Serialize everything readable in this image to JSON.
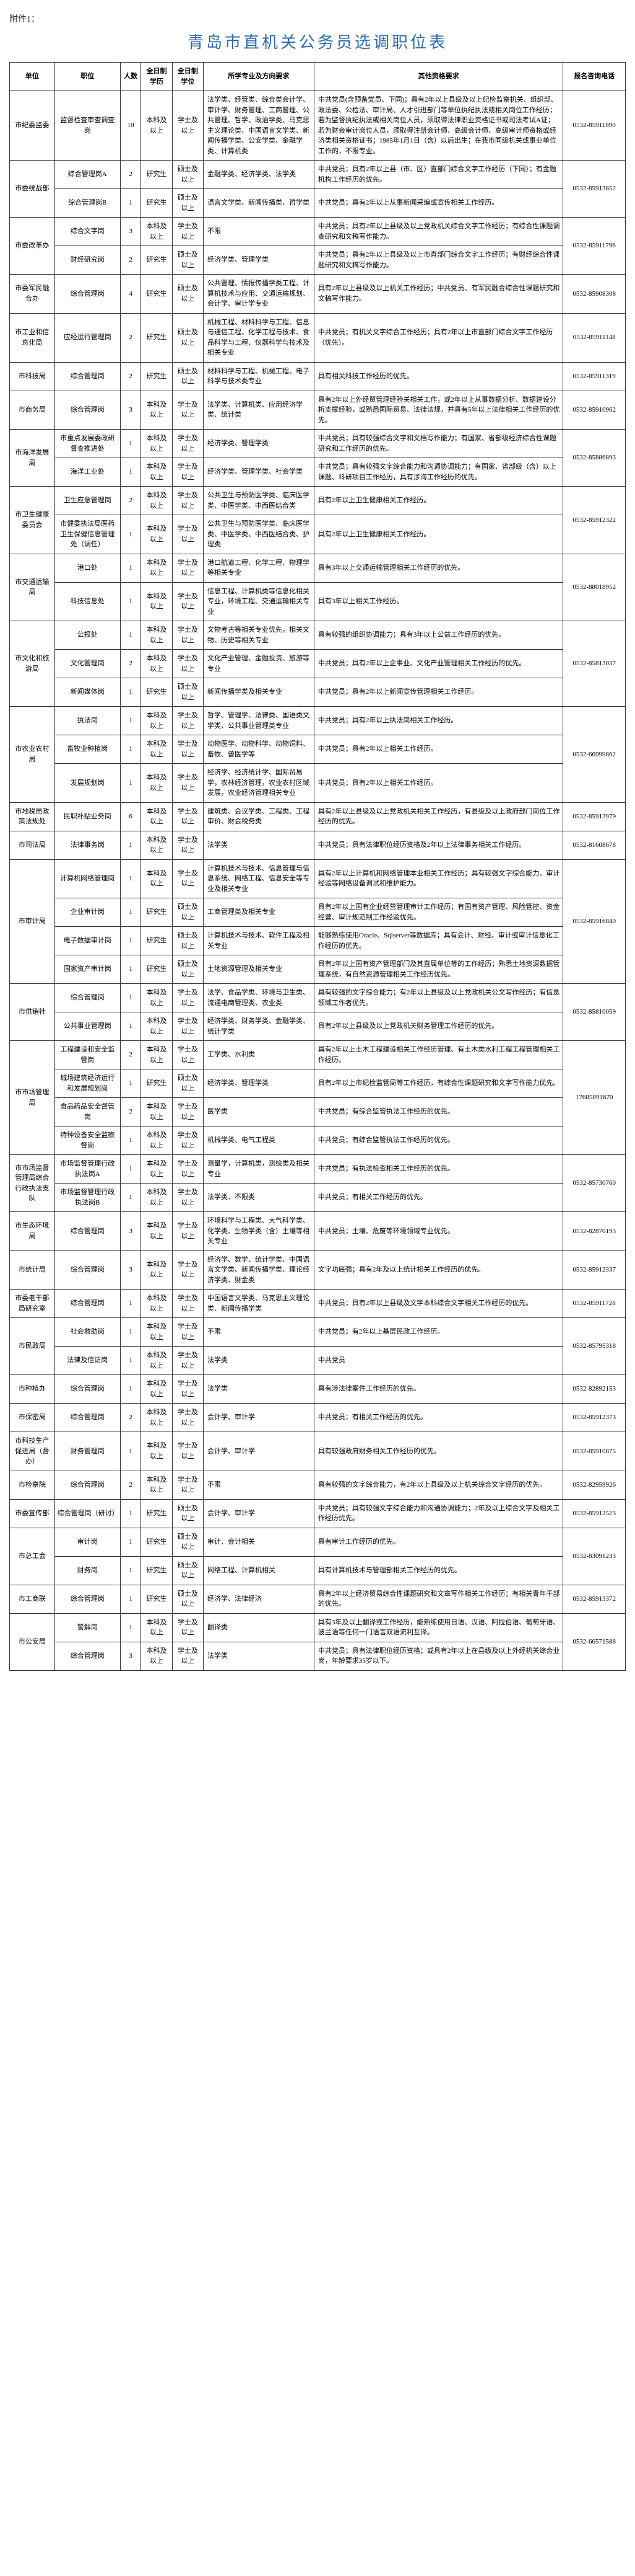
{
  "attachment_label": "附件1：",
  "title": "青岛市直机关公务员选调职位表",
  "headers": {
    "unit": "单位",
    "position": "职位",
    "count": "人数",
    "edu": "全日制学历",
    "degree": "全日制学位",
    "major": "所学专业及方向要求",
    "other": "其他资格要求",
    "phone": "报名咨询电话"
  },
  "rows": [
    {
      "unit": "市纪委监委",
      "unit_rowspan": 1,
      "position": "监督检查审查调查岗",
      "count": "10",
      "edu": "本科及以上",
      "degree": "学士及以上",
      "major": "法学类、经管类、综合类会计学、审计学、财务管理、工商管理、公共管理、哲学、政治学类、马克思主义理论类、中国语言文学类、新闻传播学类、公安学类、金融学类、计算机类",
      "other": "中共党员(含预备党员、下同)；具有2年以上县级及以上纪检监察机关、组织部、政法委、公检法、审计局、人才引进部门等单位执纪执法或相关岗位工作经历；若为监督执纪执法或相关岗位人员，须取得法律职业资格证书或司法考试A证；若为财会审计岗位人员，须取得注册会计师、高级会计师、高级审计师资格或经济类相关资格证书；1985年1月1日（含）以后出生；在我市同级机关或事业单位工作的，不限专业。",
      "phone": "0532-85911890"
    },
    {
      "unit": "市委统战部",
      "unit_rowspan": 2,
      "position": "综合管理岗A",
      "count": "2",
      "edu": "研究生",
      "degree": "硕士及以上",
      "major": "金融学类、经济学类、法学类",
      "other": "中共党员；具有2年以上县（市、区）直部门综合文字工作经历（下同）；有金融机构工作经历的优先。",
      "phone": "0532-85913852",
      "phone_rowspan": 2
    },
    {
      "position": "综合管理岗B",
      "count": "1",
      "edu": "研究生",
      "degree": "硕士及以上",
      "major": "语言文学类、新闻传播类、哲学类",
      "other": "中共党员；具有2年以上从事新闻采编或宣传相关工作经历。"
    },
    {
      "unit": "市委改革办",
      "unit_rowspan": 2,
      "position": "综合文字岗",
      "count": "3",
      "edu": "本科及以上",
      "degree": "学士及以上",
      "major": "不限",
      "other": "中共党员；具有2年以上县级及以上党政机关综合文字工作经历；有综合性课题调查研究和文稿写作能力。",
      "phone": "0532-85911796",
      "phone_rowspan": 2
    },
    {
      "position": "财经研究岗",
      "count": "2",
      "edu": "研究生",
      "degree": "硕士及以上",
      "major": "经济学类、管理学类",
      "other": "中共党员；具有2年以上县级及以上市直部门综合文字工作经历；有财经综合性课题研究和文稿写作能力。"
    },
    {
      "unit": "市委军民融合办",
      "unit_rowspan": 1,
      "position": "综合管理岗",
      "count": "4",
      "edu": "研究生",
      "degree": "硕士及以上",
      "major": "公共管理、情报传播学类工程、计算机技术与应用、交通运输规划、会计学、审计学专业",
      "other": "具有2年以上县级及以上机关工作经历；中共党员、有军民融合综合性课题研究和文稿写作能力。",
      "phone": "0532-85908308"
    },
    {
      "unit": "市工业和信息化局",
      "unit_rowspan": 1,
      "position": "应经运行管理岗",
      "count": "2",
      "edu": "研究生",
      "degree": "硕士及以上",
      "major": "机械工程、材料科学与工程、信息与通信工程、化学工程与技术、食品科学与工程、仪器科学与技术及相关专业",
      "other": "中共党员；有机关文字综合工作经历；具有2年以上市直部门综合文字工作经历（优先）。",
      "phone": "0532-85911148"
    },
    {
      "unit": "市科技局",
      "unit_rowspan": 1,
      "position": "综合管理岗",
      "count": "2",
      "edu": "研究生",
      "degree": "硕士及以上",
      "major": "材料科学与工程、机械工程、电子科学与技术类专业",
      "other": "具有相关科技工作经历的优先。",
      "phone": "0532-85911319"
    },
    {
      "unit": "市商务局",
      "unit_rowspan": 1,
      "position": "综合管理岗",
      "count": "3",
      "edu": "本科及以上",
      "degree": "学士及以上",
      "major": "法学类、计算机类、应用经济学类、统计类",
      "other": "具有2年以上外经贸管理经验关相关工作，或2年以上从事数据分析、数据建设分析支撑经验，或熟悉国际贸易、法律法规，并具有5年以上法律相关工作经历的优先。",
      "phone": "0532-85910962"
    },
    {
      "unit": "市海洋发展局",
      "unit_rowspan": 2,
      "position": "市重点发展委政研督查推进处",
      "count": "1",
      "edu": "本科及以上",
      "degree": "学士及以上",
      "major": "经济学类、管理学类",
      "other": "中共党员；具有较强综合文字和文档写作能力；有国家、省部级经济综合性课题研究和工作经历的优先。",
      "phone": "0532-85886893",
      "phone_rowspan": 2
    },
    {
      "position": "海洋工业处",
      "count": "1",
      "edu": "本科及以上",
      "degree": "学士及以上",
      "major": "经济学类、管理学类、社会学类",
      "other": "中共党员；具有较强文字综合能力和沟通协调能力；有国家、省部级（含）以上课题、科研项目工作经历，具有涉海工作经历的优先。"
    },
    {
      "unit": "市卫生健康委员会",
      "unit_rowspan": 2,
      "position": "卫生应急管理岗",
      "count": "2",
      "edu": "本科及以上",
      "degree": "学士及以上",
      "major": "公共卫生与预防医学类、临床医学类、中医学类、中西医结合类",
      "other": "具有2年以上卫生健康相关工作经历。",
      "phone": "0532-85912322",
      "phone_rowspan": 2
    },
    {
      "position": "市健委执法局医药卫生保健信息管理处（调任）",
      "count": "1",
      "edu": "本科及以上",
      "degree": "学士及以上",
      "major": "公共卫生与预防医学类、临床医学类、中医学类、中西医结合类、护理类",
      "other": "具有2年以上卫生健康相关工作经历。",
      "phone": "0532-85708410"
    },
    {
      "unit": "市交通运输局",
      "unit_rowspan": 2,
      "position": "港口处",
      "count": "1",
      "edu": "本科及以上",
      "degree": "学士及以上",
      "major": "港口航道工程、化学工程、物理学等相关专业",
      "other": "具有3年以上交通运输管理相关工作经历的优先。",
      "phone": "0532-88018952",
      "phone_rowspan": 2
    },
    {
      "position": "科技信息处",
      "count": "1",
      "edu": "本科及以上",
      "degree": "学士及以上",
      "major": "信息工程、计算机类等信息化相关专业，环境工程、交通运输相关专业",
      "other": "具有3年以上相关工作经历。"
    },
    {
      "unit": "市文化和旅游局",
      "unit_rowspan": 3,
      "position": "公报处",
      "count": "1",
      "edu": "本科及以上",
      "degree": "学士及以上",
      "major": "文物考古等相关专业优先，相关文物、历史等相关专业",
      "other": "具有较强的组织协调能力；具有3年以上公益工作经历的优先。",
      "phone": "0532-85813037",
      "phone_rowspan": 3
    },
    {
      "position": "文化管理岗",
      "count": "2",
      "edu": "本科及以上",
      "degree": "学士及以上",
      "major": "文化产业管理、金融投资、旅游等专业",
      "other": "中共党员；具有2年以上企事业、文化产业管理相关工作经历的优先。"
    },
    {
      "position": "新闻媒体岗",
      "count": "1",
      "edu": "研究生",
      "degree": "硕士及以上",
      "major": "新闻传播学类及相关专业",
      "other": "中共党员；具有2年以上新闻宣传管理相关工作经历。"
    },
    {
      "unit": "市农业农村局",
      "unit_rowspan": 3,
      "position": "执法岗",
      "count": "1",
      "edu": "本科及以上",
      "degree": "学士及以上",
      "major": "哲学、管理学、法律类、国语类文学类、公共事业管理类专业",
      "other": "中共党员；具有2年以上执法岗相关工作经历。",
      "phone": "0532-66999862",
      "phone_rowspan": 3
    },
    {
      "position": "畜牧业种植岗",
      "count": "1",
      "edu": "本科及以上",
      "degree": "学士及以上",
      "major": "动物医学、动物科学、动物饲料、畜牧、兽医学等",
      "other": "中共党员；具有2年以上相关工作经历。"
    },
    {
      "position": "发展规划岗",
      "count": "1",
      "edu": "本科及以上",
      "degree": "学士及以上",
      "major": "经济学、经济统计学、国际贸易学，农林经济管理，农业农村区域发展，农业经济管理相关专业",
      "other": "中共党员；具有2年以上相关工作经历。"
    },
    {
      "unit": "市地税局政策法规处",
      "unit_rowspan": 1,
      "position": "民职补贴业务岗",
      "count": "6",
      "edu": "本科及以上",
      "degree": "学士及以上",
      "major": "建筑类、会议学类、工程类、工程审价、财会税务类",
      "other": "具有2年以上县级及以上党政机关相关工作经历，有县级及以上政府部门岗位工作经历的优先。",
      "phone": "0532-85913979"
    },
    {
      "unit": "市司法局",
      "unit_rowspan": 1,
      "position": "法律事务岗",
      "count": "1",
      "edu": "本科及以上",
      "degree": "学士及以上",
      "major": "法学类",
      "other": "中共党员；具有法律职位经历资格及2年以上法律事务相关工作经历。",
      "phone": "0532-81608678"
    },
    {
      "unit": "市审计局",
      "unit_rowspan": 4,
      "position": "计算机网络管理岗",
      "count": "1",
      "edu": "本科及以上",
      "degree": "学士及以上",
      "major": "计算机技术与技术、信息管理与信息系统、网络工程、信息安全等专业及相关专业",
      "other": "具有2年以上计算机和网络管理本业相关工作经历；具有较强文字综合能力、审计经验等网络设备调试和维护能力。",
      "phone": "0532-85916840",
      "phone_rowspan": 4
    },
    {
      "position": "企业审计岗",
      "count": "1",
      "edu": "研究生",
      "degree": "硕士及以上",
      "major": "工商管理类及相关专业",
      "other": "具有2年以上国有企业经营管理审计工作经历；有国有资产管理、风险管控、资金经营、审计规范制工作经验优先。"
    },
    {
      "position": "电子数据审计岗",
      "count": "1",
      "edu": "研究生",
      "degree": "硕士及以上",
      "major": "计算机技术与技术、软件工程及相关专业",
      "other": "能够熟练使用Oracle、Sqlserver等数据库；具有会计、财经、审计或审计信息化工作经历的优先。",
      "phone": "0532-85913368"
    },
    {
      "position": "国家资产审计岗",
      "count": "1",
      "edu": "研究生",
      "degree": "硕士及以上",
      "major": "土地资源管理及相关专业",
      "other": "具有2年以上国有资产管理部门及其直属单位等的工作经历；熟悉土地资源数据管理系统，有自然资源管理相关工作经历优先。"
    },
    {
      "unit": "市供销社",
      "unit_rowspan": 2,
      "position": "综合管理岗",
      "count": "1",
      "edu": "本科及以上",
      "degree": "学士及以上",
      "major": "法学、食品学类、环境与卫生类、流通电商管理类、农业类",
      "other": "具有较强的文字综合能力；有2年以上县级及以上党政机关公文写作经历；有信息领域工作者优先。",
      "phone": "0532-85810059",
      "phone_rowspan": 2
    },
    {
      "position": "公共事业管理岗",
      "count": "1",
      "edu": "本科及以上",
      "degree": "学士及以上",
      "major": "经济学类、财务学类、金融学类、统计学类",
      "other": "具有2年以上县级及以上党政机关财务管理工作经历的优先。"
    },
    {
      "unit": "市市场管理局",
      "unit_rowspan": 4,
      "position": "工程建设和安全监管岗",
      "count": "2",
      "edu": "本科及以上",
      "degree": "学士及以上",
      "major": "工学类、水利类",
      "other": "具有2年以上土木工程建设相关工作经历管理、有土木类水利工程工程管理相关工作经历。",
      "phone": "17685891670",
      "phone_rowspan": 4
    },
    {
      "position": "城场建筑经济运行和发展规划岗",
      "count": "1",
      "edu": "研究生",
      "degree": "硕士及以上",
      "major": "经济学类、管理学类",
      "other": "具有2年以上市纪检监管局等工作经历，有综合性课题研究和文字写作能力优先。"
    },
    {
      "position": "食品药品安全督管岗",
      "count": "2",
      "edu": "本科及以上",
      "degree": "学士及以上",
      "major": "医学类",
      "other": "中共党员；有综合监管执法工作经历的优先。"
    },
    {
      "position": "特种设备安全监察督岗",
      "count": "1",
      "edu": "本科及以上",
      "degree": "学士及以上",
      "major": "机械学类、电气工程类",
      "other": "中共党员；有综合监管执法工作经历的优先。",
      "phone": "0532-85725912"
    },
    {
      "unit": "市市场监督管理局综合行政执法支队",
      "unit_rowspan": 2,
      "position": "市场监督管理行政执法岗A",
      "count": "1",
      "edu": "本科及以上",
      "degree": "学士及以上",
      "major": "测量学，计算机类，测绘类及相关专业",
      "other": "中共党员；有执法检查相关工作经历的优先。",
      "phone": "0532-85730760",
      "phone_rowspan": 2
    },
    {
      "position": "市场监督管理行政执法岗B",
      "count": "1",
      "edu": "本科及以上",
      "degree": "学士及以上",
      "major": "法学类、不限类",
      "other": "中共党员；有相关工作经历的优先。"
    },
    {
      "unit": "市生态环境局",
      "unit_rowspan": 1,
      "position": "综合管理岗",
      "count": "3",
      "edu": "本科及以上",
      "degree": "学士及以上",
      "major": "环境科学与工程类、大气科学类、化学类、生物学类（含）土壤等相关专业",
      "other": "中共党员；土壤、危废等环境领域专业优先。",
      "phone": "0532-82870193"
    },
    {
      "unit": "市统计局",
      "unit_rowspan": 1,
      "position": "综合管理岗",
      "count": "3",
      "edu": "本科及以上",
      "degree": "学士及以上",
      "major": "经济学、数学、统计学类、中国语言文学类、新闻传播学类、理论经济学类、财金类",
      "other": "文字功底强；具有2年及以上统计相关工作经历的优先。",
      "phone": "0532-85912337"
    },
    {
      "unit": "市委老干部局研究室",
      "unit_rowspan": 1,
      "position": "综合管理岗",
      "count": "1",
      "edu": "本科及以上",
      "degree": "学士及以上",
      "major": "中国语言文学类、马克思主义理论类、新闻传播学类",
      "other": "中共党员；具有2年以上县级及文学本科综合文字相关工作经历的优先。",
      "phone": "0532-85911728"
    },
    {
      "unit": "市民政局",
      "unit_rowspan": 2,
      "position": "社会救助岗",
      "count": "1",
      "edu": "本科及以上",
      "degree": "学士及以上",
      "major": "不限",
      "other": "中共党员；有2年以上基层民政工作经历。",
      "phone": "0532-85795318",
      "phone_rowspan": 2
    },
    {
      "position": "法律及信访岗",
      "count": "1",
      "edu": "本科及以上",
      "degree": "学士及以上",
      "major": "法学类",
      "other": "中共党员"
    },
    {
      "unit": "市种植办",
      "unit_rowspan": 1,
      "position": "综合管理岗",
      "count": "1",
      "edu": "本科及以上",
      "degree": "学士及以上",
      "major": "法学类",
      "other": "具有涉法律案件工作经历的优先。",
      "phone": "0532-82892153"
    },
    {
      "unit": "市保密局",
      "unit_rowspan": 1,
      "position": "综合管理岗",
      "count": "2",
      "edu": "本科及以上",
      "degree": "学士及以上",
      "major": "会计学、审计学",
      "other": "中共党员；有相关工作经历的优先。",
      "phone": "0532-85912373"
    },
    {
      "unit": "市科技生产促进局（督办）",
      "unit_rowspan": 1,
      "position": "财务管理岗",
      "count": "1",
      "edu": "本科及以上",
      "degree": "学士及以上",
      "major": "会计学、审计学",
      "other": "具有较强政府财务相关工作经历的优先。",
      "phone": "0532-85910875"
    },
    {
      "unit": "市检察院",
      "unit_rowspan": 1,
      "position": "综合管理岗",
      "count": "2",
      "edu": "本科及以上",
      "degree": "学士及以上",
      "major": "不限",
      "other": "具有较强的文字综合能力，有2年以上县级及以上机关综合文字经历的优先。",
      "phone": "0532-82959926"
    },
    {
      "unit": "市委宣传部",
      "unit_rowspan": 1,
      "position": "综合管理岗（研讨）",
      "count": "1",
      "edu": "研究生",
      "degree": "硕士及以上",
      "major": "会计学、审计学",
      "other": "中共党员；具有较强文字综合能力和沟通协调能力；2年及以上综合文字及相关工作经历优先。",
      "phone": "0532-85912523"
    },
    {
      "unit": "市总工会",
      "unit_rowspan": 2,
      "position": "审计岗",
      "count": "1",
      "edu": "研究生",
      "degree": "硕士及以上",
      "major": "审计、会计相关",
      "other": "具有审计工作经历的优先。",
      "phone": "0532-83091233",
      "phone_rowspan": 2
    },
    {
      "position": "财务岗",
      "count": "1",
      "edu": "研究生",
      "degree": "硕士及以上",
      "major": "网络工程、计算机相关",
      "other": "具有计算机技术与管理部相关工作经历的优先。"
    },
    {
      "unit": "市工商联",
      "unit_rowspan": 1,
      "position": "综合管理岗",
      "count": "1",
      "edu": "研究生",
      "degree": "硕士及以上",
      "major": "经济学、法律经济",
      "other": "具有2年以上经济贸易综合性课题研究和文章写作相关工作经历；有相关青年干部的优先。",
      "phone": "0532-85913372"
    },
    {
      "unit": "市公安局",
      "unit_rowspan": 2,
      "position": "警解岗",
      "count": "1",
      "edu": "本科及以上",
      "degree": "学士及以上",
      "major": "翻译类",
      "other": "具有3年及以上翻译或工作经历，能熟练使用日语、汉语、阿拉伯语、葡萄牙语、波兰语等任何一门语言双语流利互译。",
      "phone": "0532-66571588",
      "phone_rowspan": 2
    },
    {
      "position": "综合管理岗",
      "count": "3",
      "edu": "本科及以上",
      "degree": "学士及以上",
      "major": "法学类",
      "other": "中共党员；具有法律职位经历资格；或具有2年以上在县级及以上外经机关综合业岗，年龄要求35岁以下。"
    }
  ]
}
